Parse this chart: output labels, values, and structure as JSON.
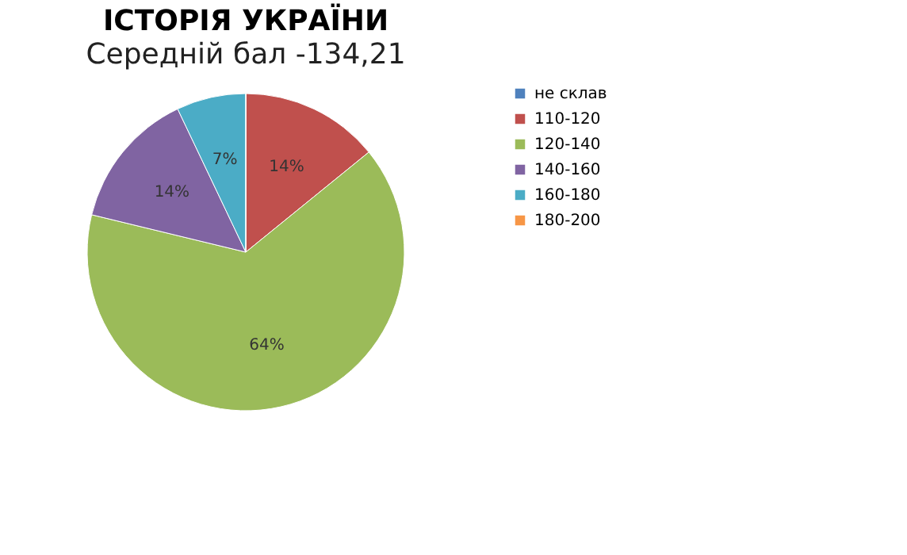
{
  "chart_data": {
    "type": "pie",
    "title": "ІСТОРІЯ УКРАЇНИ",
    "subtitle": "Середній бал -134,21",
    "categories": [
      "не склав",
      "110-120",
      "120-140",
      "140-160",
      "160-180",
      "180-200"
    ],
    "values": [
      0,
      14,
      64,
      14,
      7,
      0
    ],
    "colors": [
      "#4f81bd",
      "#c0504d",
      "#9bbb59",
      "#8064a2",
      "#4bacc6",
      "#f79646"
    ],
    "value_labels": [
      null,
      "14%",
      "64%",
      "14%",
      "7%",
      null
    ],
    "legend": "right"
  }
}
